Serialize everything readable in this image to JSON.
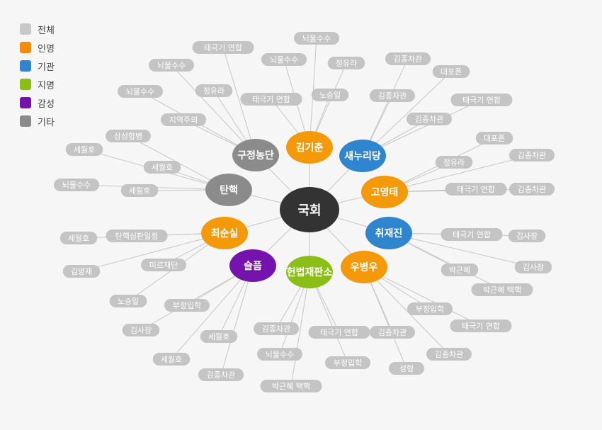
{
  "legend": [
    {
      "label": "전체",
      "color": "#c8c8c8"
    },
    {
      "label": "인명",
      "color": "#f4890a"
    },
    {
      "label": "기관",
      "color": "#2f86cf"
    },
    {
      "label": "지명",
      "color": "#8bbf18"
    },
    {
      "label": "감성",
      "color": "#7413ae"
    },
    {
      "label": "기타",
      "color": "#8b8b8b"
    }
  ],
  "root": {
    "label": "국회",
    "color": "#333333"
  },
  "hubs": [
    {
      "id": "kimgichun",
      "label": "김기춘",
      "color": "#f49a0a"
    },
    {
      "id": "saenuri",
      "label": "새누리당",
      "color": "#2f86cf"
    },
    {
      "id": "goyoungtae",
      "label": "고영태",
      "color": "#f49a0a"
    },
    {
      "id": "chuijaejin",
      "label": "취재진",
      "color": "#2f86cf"
    },
    {
      "id": "woobyungwoo",
      "label": "우병우",
      "color": "#f49a0a"
    },
    {
      "id": "constcourt",
      "label": "헌법재판소",
      "color": "#8bbf18"
    },
    {
      "id": "sadness",
      "label": "슬픔",
      "color": "#7413ae"
    },
    {
      "id": "choisoonsil",
      "label": "최순실",
      "color": "#f49a0a"
    },
    {
      "id": "impeach",
      "label": "탄핵",
      "color": "#8b8b8b"
    },
    {
      "id": "gujeong",
      "label": "구정농단",
      "color": "#8b8b8b"
    }
  ],
  "leaves": [
    {
      "hub": "kimgichun",
      "label": "뇌물수수"
    },
    {
      "hub": "kimgichun",
      "label": "뇌물수수"
    },
    {
      "hub": "kimgichun",
      "label": "정유라"
    },
    {
      "hub": "kimgichun",
      "label": "태극기 연합"
    },
    {
      "hub": "kimgichun",
      "label": "노승일"
    },
    {
      "hub": "saenuri",
      "label": "김종차관"
    },
    {
      "hub": "saenuri",
      "label": "대포폰"
    },
    {
      "hub": "saenuri",
      "label": "김종차관"
    },
    {
      "hub": "saenuri",
      "label": "태극기 연합"
    },
    {
      "hub": "saenuri",
      "label": "김종차관"
    },
    {
      "hub": "goyoungtae",
      "label": "대포폰"
    },
    {
      "hub": "goyoungtae",
      "label": "정유라"
    },
    {
      "hub": "goyoungtae",
      "label": "김종차관"
    },
    {
      "hub": "goyoungtae",
      "label": "태극기 연합"
    },
    {
      "hub": "goyoungtae",
      "label": "김종차관"
    },
    {
      "hub": "chuijaejin",
      "label": "태극기 연합"
    },
    {
      "hub": "chuijaejin",
      "label": "김사장"
    },
    {
      "hub": "chuijaejin",
      "label": "김사장"
    },
    {
      "hub": "chuijaejin",
      "label": "박근혜"
    },
    {
      "hub": "chuijaejin",
      "label": "박근혜 택핵"
    },
    {
      "hub": "woobyungwoo",
      "label": "부정입학"
    },
    {
      "hub": "woobyungwoo",
      "label": "태극기 연합"
    },
    {
      "hub": "woobyungwoo",
      "label": "김종차관"
    },
    {
      "hub": "woobyungwoo",
      "label": "김종차관"
    },
    {
      "hub": "woobyungwoo",
      "label": "성형"
    },
    {
      "hub": "constcourt",
      "label": "김종차관"
    },
    {
      "hub": "constcourt",
      "label": "태극기 연합"
    },
    {
      "hub": "constcourt",
      "label": "뇌물수수"
    },
    {
      "hub": "constcourt",
      "label": "부정입학"
    },
    {
      "hub": "constcourt",
      "label": "박근혜 택핵"
    },
    {
      "hub": "sadness",
      "label": "부정입학"
    },
    {
      "hub": "sadness",
      "label": "김사장"
    },
    {
      "hub": "sadness",
      "label": "세월호"
    },
    {
      "hub": "sadness",
      "label": "세월호"
    },
    {
      "hub": "sadness",
      "label": "김종차관"
    },
    {
      "hub": "choisoonsil",
      "label": "탄핵심판일정"
    },
    {
      "hub": "choisoonsil",
      "label": "세월호"
    },
    {
      "hub": "choisoonsil",
      "label": "미르재단"
    },
    {
      "hub": "choisoonsil",
      "label": "김영재"
    },
    {
      "hub": "choisoonsil",
      "label": "노승일"
    },
    {
      "hub": "impeach",
      "label": "삼성합병"
    },
    {
      "hub": "impeach",
      "label": "세월호"
    },
    {
      "hub": "impeach",
      "label": "세월호"
    },
    {
      "hub": "impeach",
      "label": "뇌물수수"
    },
    {
      "hub": "impeach",
      "label": "세월호"
    },
    {
      "hub": "gujeong",
      "label": "태극기 연합"
    },
    {
      "hub": "gujeong",
      "label": "뇌물수수"
    },
    {
      "hub": "gujeong",
      "label": "정유라"
    },
    {
      "hub": "gujeong",
      "label": "뇌물수수"
    },
    {
      "hub": "gujeong",
      "label": "지역주의"
    }
  ]
}
